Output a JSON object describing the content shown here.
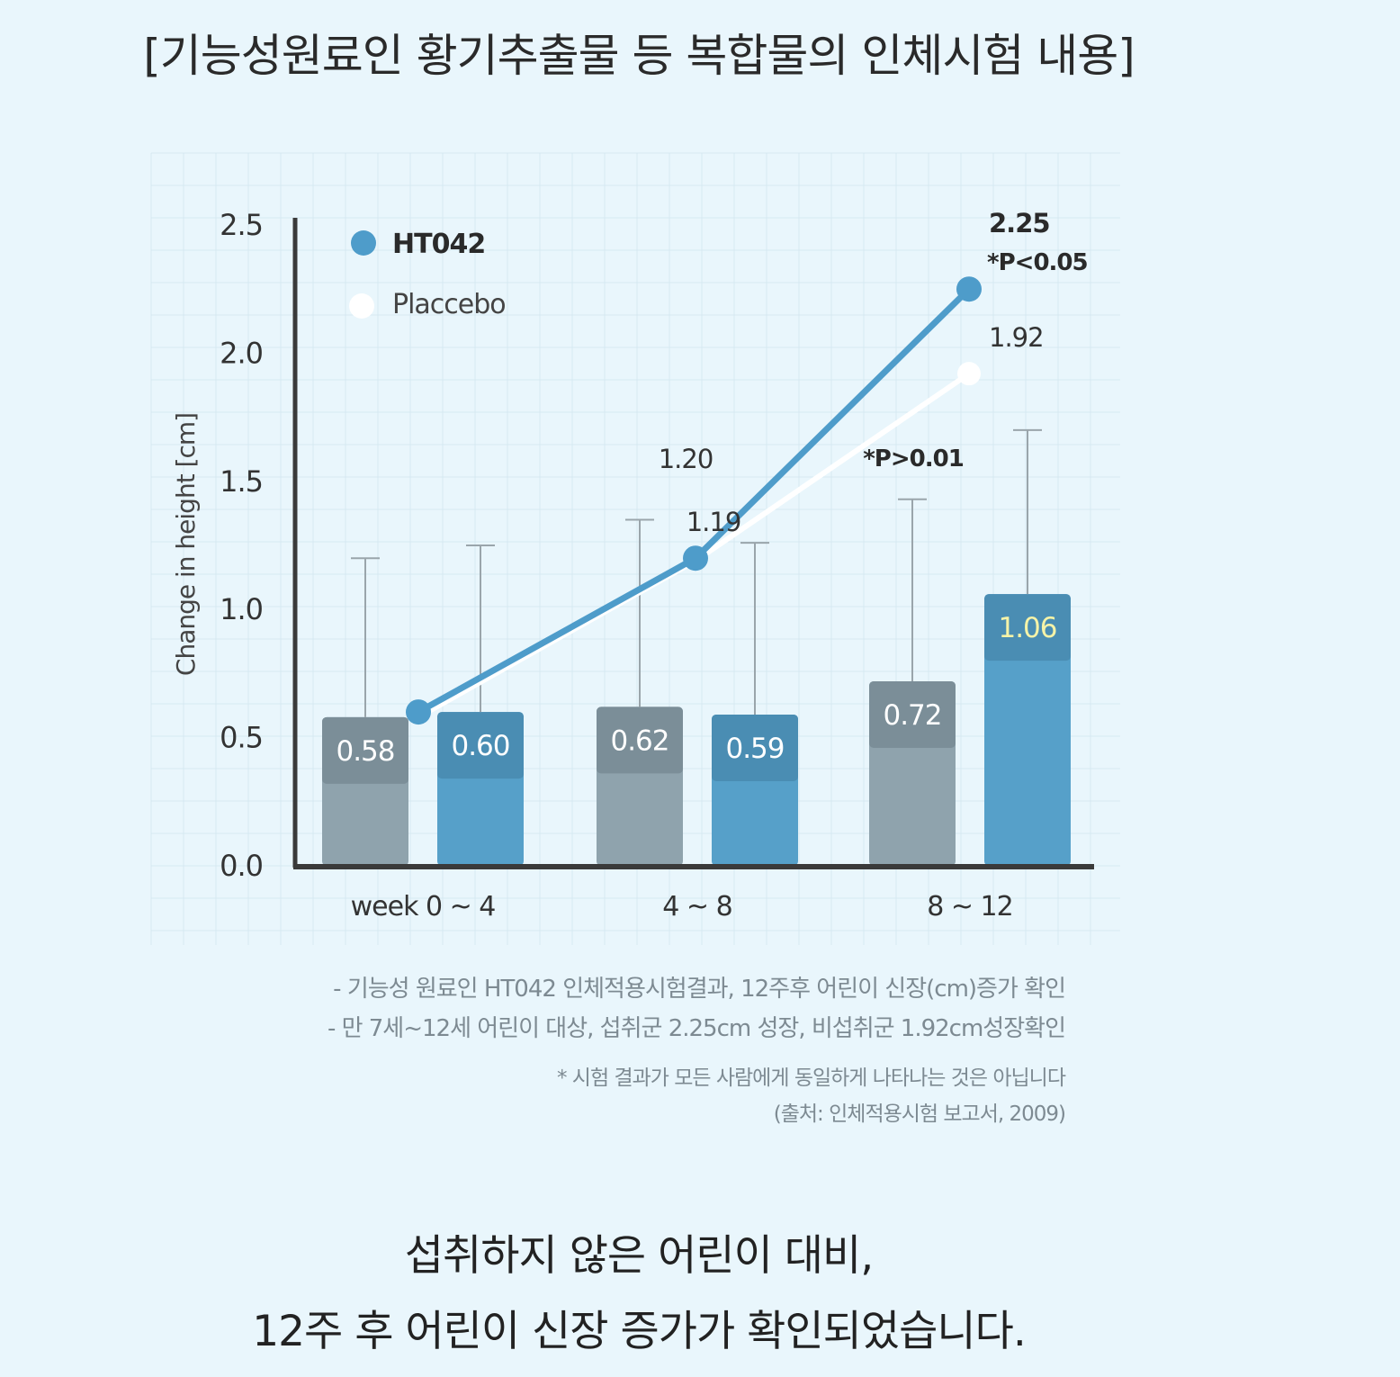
{
  "title": "[기능성원료인 황기추출물 등 복합물의 인체시험 내용]",
  "colors": {
    "background": "#e9f6fc",
    "placebo_bar": "#8fa3ad",
    "placebo_cap": "#7b8e98",
    "ht042_bar": "#56a0c9",
    "ht042_cap": "#4a8db3",
    "ht042_line": "#4e9cca",
    "placebo_line": "#ffffff",
    "highlight_value": "#f5f3a8"
  },
  "chart_data": {
    "type": "bar",
    "ylabel": "Change in height [cm]",
    "ylim": [
      0,
      2.5
    ],
    "yticks": [
      "0.0",
      "0.5",
      "1.0",
      "1.5",
      "2.0",
      "2.5"
    ],
    "categories": [
      "week 0 ~ 4",
      "4 ~ 8",
      "8 ~ 12"
    ],
    "series": [
      {
        "name": "Placcebo",
        "kind": "bar",
        "values": [
          0.58,
          0.62,
          0.72
        ],
        "labels": [
          "0.58",
          "0.62",
          "0.72"
        ],
        "error_top": [
          1.2,
          1.35,
          1.43
        ]
      },
      {
        "name": "HT042",
        "kind": "bar",
        "values": [
          0.6,
          0.59,
          1.06
        ],
        "labels": [
          "0.60",
          "0.59",
          "1.06"
        ],
        "error_top": [
          1.25,
          1.26,
          1.7
        ]
      }
    ],
    "cumulative": [
      {
        "name": "HT042",
        "values": [
          0.6,
          1.2,
          2.25
        ],
        "labels": [
          "",
          "1.20",
          "2.25"
        ]
      },
      {
        "name": "Placcebo",
        "values": [
          0.58,
          1.19,
          1.92
        ],
        "labels": [
          "",
          "1.19",
          "1.92"
        ]
      }
    ],
    "annotations": [
      "*P<0.05",
      "*P>0.01"
    ],
    "legend": [
      "HT042",
      "Placcebo"
    ],
    "legend_position": "top-left",
    "grid": true
  },
  "notes": [
    "- 기능성 원료인 HT042 인체적용시험결과, 12주후 어린이 신장(cm)증가 확인",
    "- 만 7세~12세 어린이 대상, 섭취군 2.25cm 성장, 비섭취군 1.92cm성장확인",
    "* 시험 결과가 모든 사람에게 동일하게 나타나는 것은 아닙니다",
    "(출처: 인체적용시험 보고서, 2009)"
  ],
  "caption": [
    "섭취하지 않은 어린이 대비,",
    "12주 후 어린이 신장 증가가 확인되었습니다."
  ]
}
